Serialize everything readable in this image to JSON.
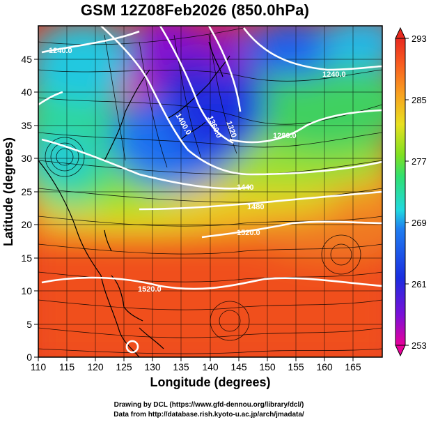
{
  "title": "GSM 12Z08Feb2026 (850.0hPa)",
  "xaxis": {
    "label": "Longitude (degrees)",
    "ticks": [
      "110",
      "115",
      "120",
      "125",
      "130",
      "135",
      "140",
      "145",
      "150",
      "155",
      "160",
      "165"
    ],
    "range": [
      110,
      170
    ]
  },
  "yaxis": {
    "label": "Latitude (degrees)",
    "ticks": [
      "0",
      "5",
      "10",
      "15",
      "20",
      "25",
      "30",
      "35",
      "40",
      "45"
    ],
    "range": [
      0,
      50
    ]
  },
  "colorbar": {
    "ticks": [
      "293",
      "285",
      "277",
      "269",
      "261",
      "253"
    ],
    "range": [
      253,
      293
    ],
    "colors": [
      "#e8009a",
      "#7a10d8",
      "#1a2ee0",
      "#1f7ef0",
      "#20d8e0",
      "#30e070",
      "#7fe020",
      "#e8e020",
      "#f8a020",
      "#f85a20",
      "#e82a20"
    ]
  },
  "contours": [
    {
      "label": "1240.0"
    },
    {
      "label": "1240.0"
    },
    {
      "label": "1400.0"
    },
    {
      "label": "1360.0"
    },
    {
      "label": "1320"
    },
    {
      "label": "1280.0"
    },
    {
      "label": "1440"
    },
    {
      "label": "1480"
    },
    {
      "label": "1520.0"
    },
    {
      "label": "1520.0"
    }
  ],
  "credits": {
    "line1": "Drawing by DCL (https://www.gfd-dennou.org/library/dcl/)",
    "line2": "Data from http://database.rish.kyoto-u.ac.jp/arch/jmadata/"
  }
}
